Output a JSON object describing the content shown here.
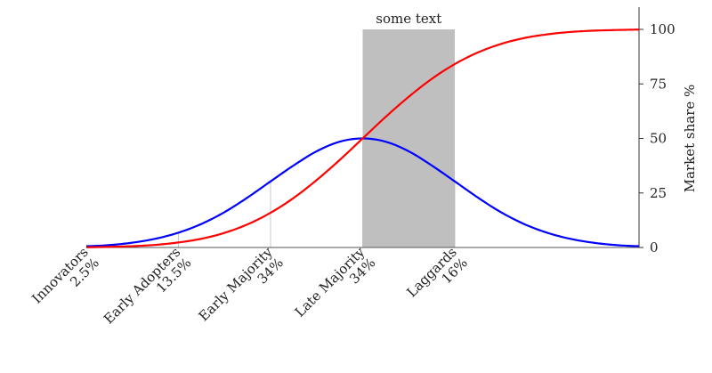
{
  "chart_data": {
    "type": "line",
    "title": "",
    "xlabel": "",
    "ylabel": "Market share %",
    "ylim": [
      0,
      100
    ],
    "yticks": [
      0,
      25,
      50,
      75,
      100
    ],
    "y_axis_side": "right",
    "xlim": [
      -3,
      3
    ],
    "x": [
      -3,
      -2.75,
      -2.5,
      -2.25,
      -2,
      -1.75,
      -1.5,
      -1.25,
      -1,
      -0.75,
      -0.5,
      -0.25,
      0,
      0.25,
      0.5,
      0.75,
      1,
      1.25,
      1.5,
      1.75,
      2,
      2.25,
      2.5,
      2.75,
      3
    ],
    "series": [
      {
        "id": "adoption",
        "color": "#0000ff",
        "values": [
          0.6,
          1.1,
          2.2,
          4.0,
          6.8,
          10.8,
          16.2,
          22.9,
          30.3,
          37.6,
          44.1,
          48.5,
          50.0,
          48.5,
          44.1,
          37.6,
          30.3,
          22.9,
          16.2,
          10.8,
          6.8,
          4.0,
          2.2,
          1.1,
          0.6
        ]
      },
      {
        "id": "market-share",
        "color": "#ff0000",
        "values": [
          0.1,
          0.3,
          0.6,
          1.2,
          2.3,
          4.0,
          6.7,
          10.6,
          15.9,
          22.7,
          30.9,
          40.1,
          50.0,
          59.9,
          69.1,
          77.3,
          84.1,
          89.4,
          93.3,
          96.0,
          97.7,
          98.8,
          99.4,
          99.7,
          99.9
        ]
      }
    ],
    "divisions": [
      -2,
      -1,
      0,
      1
    ],
    "highlight": {
      "x0": 0,
      "x1": 1,
      "y_top": 100,
      "color": "#bfbfbf",
      "label": "some text"
    },
    "categories": [
      {
        "name": "Innovators",
        "pct": "2.5%",
        "x": -3
      },
      {
        "name": "Early Adopters",
        "pct": "13.5%",
        "x": -2
      },
      {
        "name": "Early Majority",
        "pct": "34%",
        "x": -1
      },
      {
        "name": "Late Majority",
        "pct": "34%",
        "x": 0
      },
      {
        "name": "Laggards",
        "pct": "16%",
        "x": 1
      }
    ],
    "grid": false,
    "legend": "none"
  }
}
